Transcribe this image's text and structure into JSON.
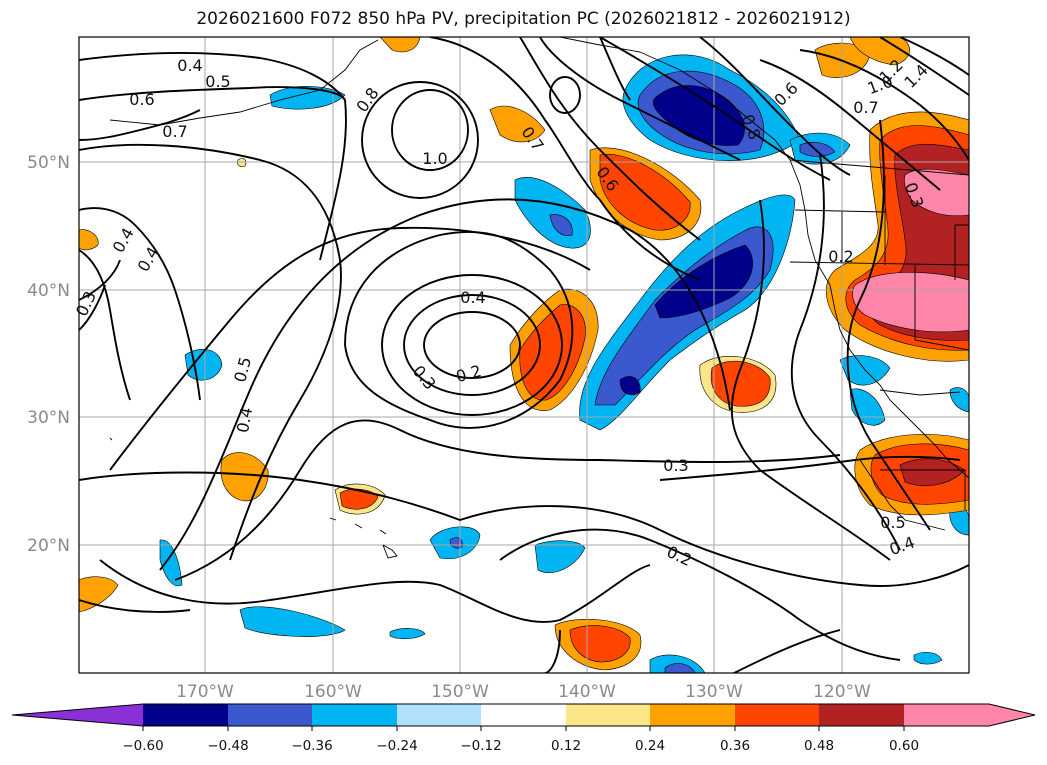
{
  "title": "2026021600 F072 850 hPa PV, precipitation PC (2026021812 - 2026021912)",
  "map": {
    "lon_ticks": [
      "170°W",
      "160°W",
      "150°W",
      "140°W",
      "130°W",
      "120°W"
    ],
    "lat_ticks": [
      "50°N",
      "40°N",
      "30°N",
      "20°N"
    ],
    "pv_contour_labels": [
      "0.4",
      "0.5",
      "0.6",
      "0.7",
      "0.8",
      "1.0",
      "0.4",
      "0.4",
      "0.3",
      "0.5",
      "0.4",
      "0.4",
      "0.3",
      "0.2",
      "0.7",
      "0.6",
      "0.3",
      "0.2",
      "0.8",
      "1.2",
      "1.4",
      "1.0",
      "0.7",
      "0.6",
      "0.2",
      "0.3",
      "0.5",
      "0.4"
    ]
  },
  "colorbar": {
    "ticks": [
      "−0.60",
      "−0.48",
      "−0.36",
      "−0.24",
      "−0.12",
      "0.12",
      "0.24",
      "0.36",
      "0.48",
      "0.60"
    ],
    "colors": [
      "#8b2fd6",
      "#00008b",
      "#3b59cf",
      "#00b5f2",
      "#b0e0fa",
      "#ffffff",
      "#fde68a",
      "#ffa100",
      "#ff4500",
      "#b22222",
      "#ff85a9",
      "#ff85a9"
    ]
  }
}
